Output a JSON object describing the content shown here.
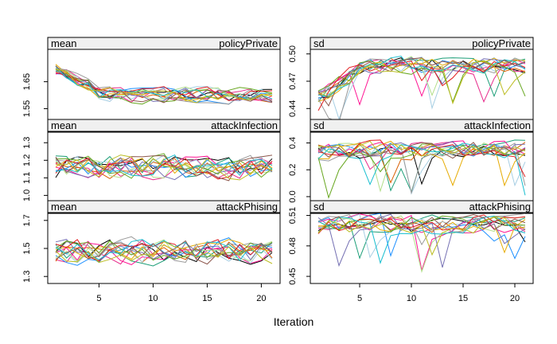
{
  "chart_data": {
    "type": "line",
    "xlabel": "Iteration",
    "x_ticks": [
      5,
      10,
      15,
      20
    ],
    "x_range": [
      1,
      21
    ],
    "series_colors": [
      "#000000",
      "#E7298A",
      "#1B9E77",
      "#D95F02",
      "#1E90FF",
      "#FF1493",
      "#A6CEE3",
      "#B2DF8A",
      "#E6AB02",
      "#999999",
      "#7570B3",
      "#66A61E",
      "#E31A1C",
      "#17BECF",
      "#8C564B",
      "#BCBD22"
    ],
    "panels": [
      {
        "stat": "mean",
        "var": "policyPrivate",
        "y_ticks": [
          "1.55",
          "1.65"
        ],
        "y_tick_values": [
          1.55,
          1.65
        ],
        "ylim": [
          1.51,
          1.77
        ],
        "center": 1.6,
        "start": 1.69,
        "noise": 0.025
      },
      {
        "stat": "sd",
        "var": "policyPrivate",
        "y_ticks": [
          "0.44",
          "0.47",
          "0.50"
        ],
        "y_tick_values": [
          0.44,
          0.47,
          0.5
        ],
        "ylim": [
          0.428,
          0.505
        ],
        "center": 0.488,
        "start": 0.455,
        "noise": 0.008
      },
      {
        "stat": "mean",
        "var": "attackInfection",
        "y_ticks": [
          "1.0",
          "1.1",
          "1.2",
          "1.3"
        ],
        "y_tick_values": [
          1.0,
          1.1,
          1.2,
          1.3
        ],
        "ylim": [
          0.97,
          1.36
        ],
        "center": 1.16,
        "start": 1.16,
        "noise": 0.06
      },
      {
        "stat": "sd",
        "var": "attackInfection",
        "y_ticks": [
          "0.0",
          "0.2",
          "0.4"
        ],
        "y_tick_values": [
          0.0,
          0.2,
          0.4
        ],
        "ylim": [
          -0.03,
          0.48
        ],
        "center": 0.35,
        "start": 0.33,
        "noise": 0.06
      },
      {
        "stat": "mean",
        "var": "attackPhising",
        "y_ticks": [
          "1.3",
          "1.5",
          "1.7"
        ],
        "y_tick_values": [
          1.3,
          1.5,
          1.7
        ],
        "ylim": [
          1.25,
          1.75
        ],
        "center": 1.48,
        "start": 1.47,
        "noise": 0.08
      },
      {
        "stat": "sd",
        "var": "attackPhising",
        "y_ticks": [
          "0.45",
          "0.48",
          "0.51"
        ],
        "y_tick_values": [
          0.45,
          0.48,
          0.51
        ],
        "ylim": [
          0.443,
          0.512
        ],
        "center": 0.502,
        "start": 0.5,
        "noise": 0.008
      }
    ]
  }
}
